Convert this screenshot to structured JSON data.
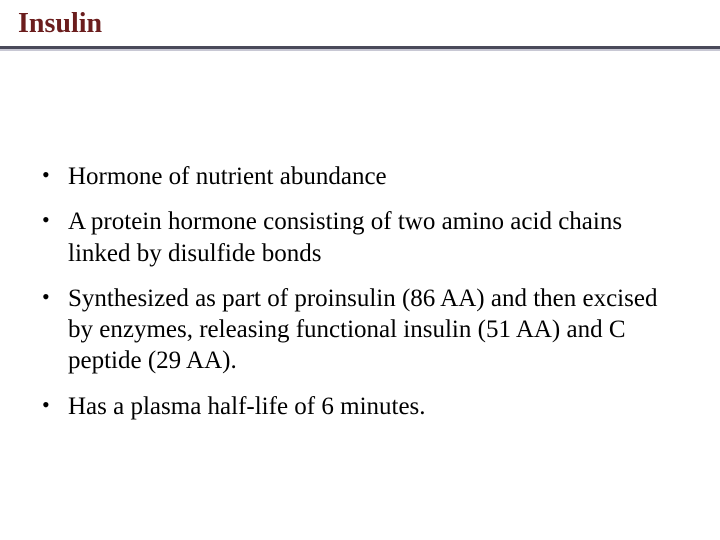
{
  "title": "Insulin",
  "title_color": "#6b1d1d",
  "rule_dark_color": "#4a4a5a",
  "rule_light_color": "#c8c8d4",
  "text_color": "#000000",
  "background_color": "#ffffff",
  "title_fontsize": 28,
  "body_fontsize": 25,
  "bullets": [
    {
      "text": "Hormone of nutrient abundance"
    },
    {
      "text": "A protein hormone consisting of two amino acid chains linked by disulfide bonds"
    },
    {
      "text": "Synthesized as part of proinsulin (86 AA) and then excised by enzymes, releasing functional insulin (51 AA) and C peptide (29 AA)."
    },
    {
      "text": "Has a plasma half-life of 6 minutes."
    }
  ],
  "bullet_marker": "•"
}
